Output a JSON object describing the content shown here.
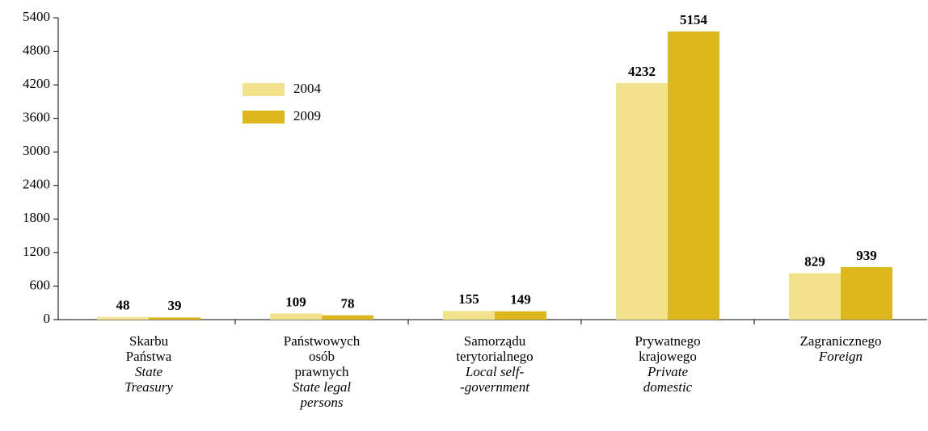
{
  "chart_data": {
    "type": "bar",
    "categories": [
      {
        "pl": [
          "Skarbu",
          "Państwa"
        ],
        "en": [
          "State",
          "Treasury"
        ]
      },
      {
        "pl": [
          "Państwowych",
          "osób",
          "prawnych"
        ],
        "en": [
          "State legal",
          "persons"
        ]
      },
      {
        "pl": [
          "Samorządu",
          "terytorialnego"
        ],
        "en": [
          "Local self-",
          "-government"
        ]
      },
      {
        "pl": [
          "Prywatnego",
          "krajowego"
        ],
        "en": [
          "Private",
          "domestic"
        ]
      },
      {
        "pl": [
          "Zagranicznego"
        ],
        "en": [
          "Foreign"
        ]
      }
    ],
    "series": [
      {
        "name": "2004",
        "color": "#f3e28c",
        "values": [
          48,
          109,
          155,
          4232,
          829
        ]
      },
      {
        "name": "2009",
        "color": "#dcb81c",
        "values": [
          39,
          78,
          149,
          5154,
          939
        ]
      }
    ],
    "ylim": [
      0,
      5400
    ],
    "yticks": [
      0,
      600,
      1200,
      1800,
      2400,
      3000,
      3600,
      4200,
      4800,
      5400
    ],
    "grid": false,
    "legend": "upper left"
  }
}
